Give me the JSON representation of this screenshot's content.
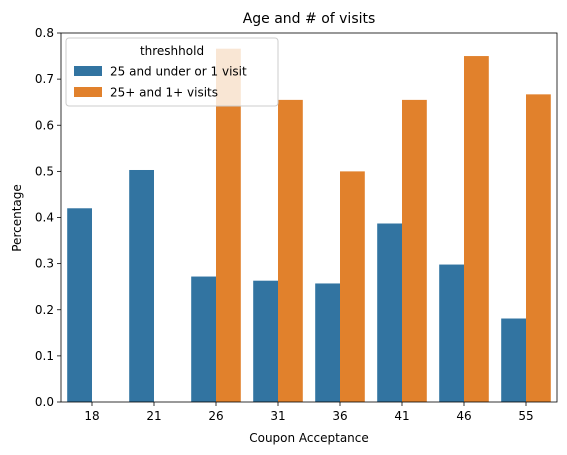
{
  "chart_data": {
    "type": "bar",
    "title": "Age and # of visits",
    "xlabel": "Coupon Acceptance",
    "ylabel": "Percentage",
    "categories": [
      "18",
      "21",
      "26",
      "31",
      "36",
      "41",
      "46",
      "55"
    ],
    "ylim": [
      0,
      0.8
    ],
    "yticks": [
      "0.0",
      "0.1",
      "0.2",
      "0.3",
      "0.4",
      "0.5",
      "0.6",
      "0.7",
      "0.8"
    ],
    "grid": false,
    "legend": {
      "title": "threshhold",
      "placement": "top-left"
    },
    "series": [
      {
        "name": "25 and under or 1 visit",
        "color": "#3274a1",
        "values": [
          0.42,
          0.503,
          0.272,
          0.263,
          0.257,
          0.387,
          0.298,
          0.181
        ]
      },
      {
        "name": "25+ and 1+ visits",
        "color": "#e1812c",
        "values": [
          null,
          null,
          0.766,
          0.655,
          0.5,
          0.655,
          0.75,
          0.667
        ]
      }
    ]
  }
}
